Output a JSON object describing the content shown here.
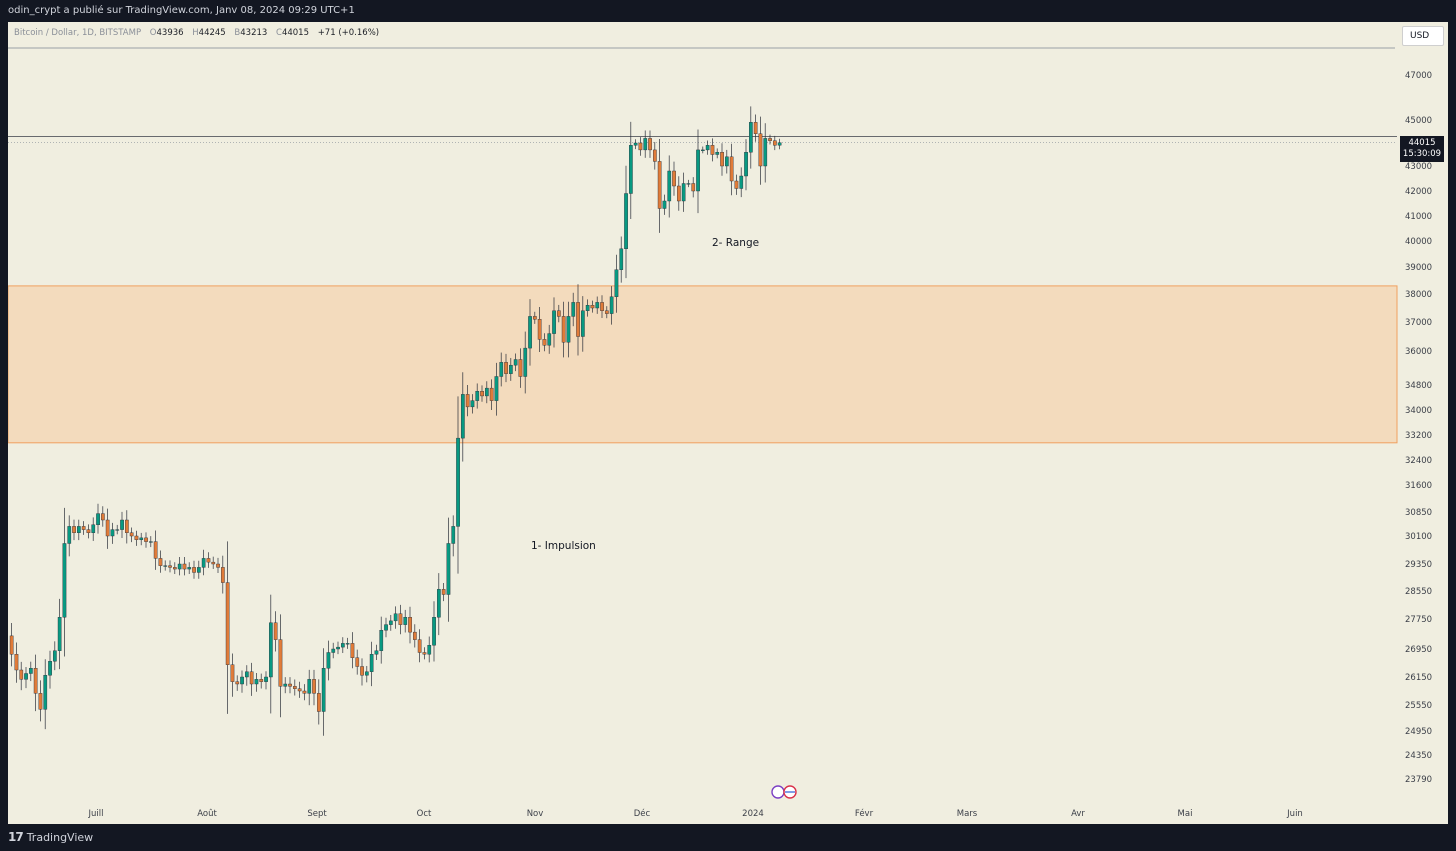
{
  "header": {
    "publish_text": "odin_crypt a publié sur TradingView.com, Janv 08, 2024 09:29 UTC+1"
  },
  "footer": {
    "brand": "TradingView",
    "logo_mark": "17"
  },
  "legend": {
    "symbol": "Bitcoin / Dollar, 1D, BITSTAMP",
    "o_label": "O",
    "o_value": "43936",
    "h_label": "H",
    "h_value": "44245",
    "b_label": "B",
    "b_value": "43213",
    "c_label": "C",
    "c_value": "44015",
    "change": "+71 (+0.16%)"
  },
  "currency_button": "USD",
  "price_tag": {
    "price": "44015",
    "countdown": "15:30:09"
  },
  "colors": {
    "background": "#f0eee0",
    "up": "#089981",
    "down": "#e07b39",
    "zone": "#f3dbbd",
    "zone_border": "#f0a060"
  },
  "chart_data": {
    "type": "candlestick",
    "title": "",
    "xlabel": "",
    "ylabel": "",
    "ylim": [
      23400,
      48000
    ],
    "y_ticks": [
      47000,
      45000,
      43000,
      42000,
      41000,
      40000,
      39000,
      38000,
      37000,
      36000,
      34800,
      34000,
      33200,
      32400,
      31600,
      30850,
      30100,
      29350,
      28550,
      27750,
      26950,
      26150,
      25550,
      24950,
      24350,
      23790
    ],
    "x_ticks": [
      "Juill",
      "Août",
      "Sept",
      "Oct",
      "Nov",
      "Déc",
      "2024",
      "Févr",
      "Mars",
      "Avr",
      "Mai",
      "Juin"
    ],
    "close_series": [
      26800,
      26350,
      26100,
      26250,
      26400,
      25800,
      25450,
      26200,
      26600,
      26900,
      27800,
      29900,
      30400,
      30200,
      30400,
      30300,
      30200,
      30450,
      30800,
      30600,
      30100,
      30300,
      30300,
      30600,
      30200,
      30100,
      30000,
      30050,
      29950,
      29950,
      29500,
      29300,
      29300,
      29250,
      29200,
      29350,
      29200,
      29250,
      29100,
      29250,
      29500,
      29400,
      29350,
      29250,
      28800,
      26500,
      26050,
      26000,
      26150,
      26300,
      26000,
      26100,
      26050,
      26150,
      27650,
      27200,
      25950,
      26000,
      25950,
      25900,
      25850,
      25800,
      26100,
      25800,
      25400,
      26400,
      26850,
      26950,
      27000,
      27100,
      27100,
      26700,
      26450,
      26200,
      26300,
      26800,
      26900,
      27450,
      27600,
      27700,
      27900,
      27600,
      27800,
      27400,
      27200,
      26850,
      26800,
      27050,
      27800,
      28600,
      28450,
      29900,
      30400,
      33100,
      34500,
      34100,
      34300,
      34600,
      34450,
      34700,
      34300,
      35100,
      35600,
      35200,
      35500,
      35700,
      35100,
      36100,
      37200,
      37100,
      36400,
      36200,
      36600,
      37400,
      37200,
      36300,
      37200,
      37700,
      36500,
      37400,
      37600,
      37500,
      37700,
      37400,
      37300,
      37900,
      38900,
      39700,
      41900,
      43900,
      44000,
      43700,
      44200,
      43700,
      43200,
      41300,
      41600,
      42800,
      42200,
      41600,
      42300,
      42300,
      42000,
      43700,
      43700,
      43900,
      43500,
      43600,
      43000,
      43400,
      42400,
      42100,
      42600,
      43600,
      44900,
      44400,
      43000,
      44200,
      44100,
      43900,
      44015
    ],
    "annotations": [
      "1- Impulsion",
      "2- Range"
    ],
    "horizontal_levels": [
      44015
    ],
    "zone": [
      32950,
      38300
    ],
    "legend": "top-left",
    "grid": false
  }
}
